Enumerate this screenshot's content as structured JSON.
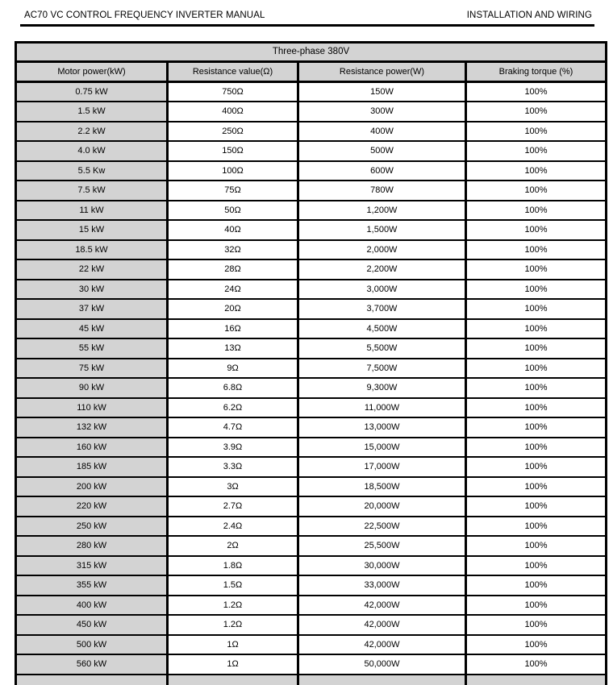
{
  "page_header": {
    "left_title": "AC70 VC CONTROL FREQUENCY INVERTER MANUAL",
    "right_title": "INSTALLATION AND WIRING"
  },
  "table": {
    "section_title": "Three-phase 380V",
    "columns": [
      "Motor power(kW)",
      "Resistance value(Ω)",
      "Resistance power(W)",
      "Braking torque (%)"
    ],
    "rows": [
      [
        "0.75 kW",
        "750Ω",
        "150W",
        "100%"
      ],
      [
        "1.5 kW",
        "400Ω",
        "300W",
        "100%"
      ],
      [
        "2.2 kW",
        "250Ω",
        "400W",
        "100%"
      ],
      [
        "4.0 kW",
        "150Ω",
        "500W",
        "100%"
      ],
      [
        "5.5 Kw",
        "100Ω",
        "600W",
        "100%"
      ],
      [
        "7.5 kW",
        "75Ω",
        "780W",
        "100%"
      ],
      [
        "11 kW",
        "50Ω",
        "1,200W",
        "100%"
      ],
      [
        "15 kW",
        "40Ω",
        "1,500W",
        "100%"
      ],
      [
        "18.5 kW",
        "32Ω",
        "2,000W",
        "100%"
      ],
      [
        "22 kW",
        "28Ω",
        "2,200W",
        "100%"
      ],
      [
        "30 kW",
        "24Ω",
        "3,000W",
        "100%"
      ],
      [
        "37 kW",
        "20Ω",
        "3,700W",
        "100%"
      ],
      [
        "45 kW",
        "16Ω",
        "4,500W",
        "100%"
      ],
      [
        "55 kW",
        "13Ω",
        "5,500W",
        "100%"
      ],
      [
        "75 kW",
        "9Ω",
        "7,500W",
        "100%"
      ],
      [
        "90 kW",
        "6.8Ω",
        "9,300W",
        "100%"
      ],
      [
        "110 kW",
        "6.2Ω",
        "11,000W",
        "100%"
      ],
      [
        "132 kW",
        "4.7Ω",
        "13,000W",
        "100%"
      ],
      [
        "160 kW",
        "3.9Ω",
        "15,000W",
        "100%"
      ],
      [
        "185 kW",
        "3.3Ω",
        "17,000W",
        "100%"
      ],
      [
        "200 kW",
        "3Ω",
        "18,500W",
        "100%"
      ],
      [
        "220 kW",
        "2.7Ω",
        "20,000W",
        "100%"
      ],
      [
        "250 kW",
        "2.4Ω",
        "22,500W",
        "100%"
      ],
      [
        "280 kW",
        "2Ω",
        "25,500W",
        "100%"
      ],
      [
        "315 kW",
        "1.8Ω",
        "30,000W",
        "100%"
      ],
      [
        "355 kW",
        "1.5Ω",
        "33,000W",
        "100%"
      ],
      [
        "400 kW",
        "1.2Ω",
        "42,000W",
        "100%"
      ],
      [
        "450 kW",
        "1.2Ω",
        "42,000W",
        "100%"
      ],
      [
        "500 kW",
        "1Ω",
        "42,000W",
        "100%"
      ],
      [
        "560 kW",
        "1Ω",
        "50,000W",
        "100%"
      ]
    ]
  },
  "colors": {
    "header_fill": "#d3d3d3",
    "border": "#000000",
    "page_bg": "#ffffff"
  }
}
